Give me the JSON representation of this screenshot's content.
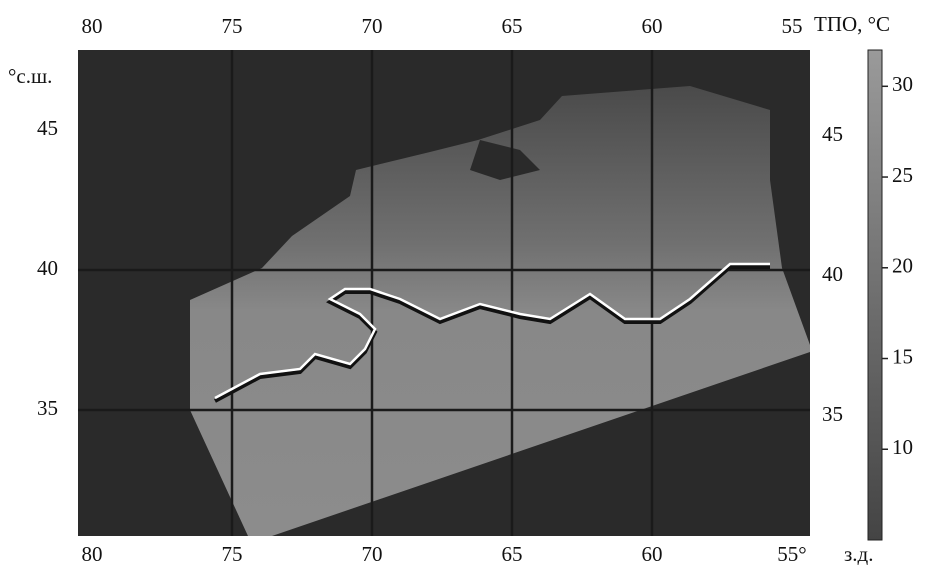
{
  "map": {
    "lon_ticks_top": [
      80,
      75,
      70,
      65,
      60,
      55
    ],
    "lon_ticks_bottom": [
      80,
      75,
      70,
      65,
      60,
      {
        "value": 55,
        "label": "55°"
      }
    ],
    "lon_unit": "з.д.",
    "lat_unit": "°с.ш.",
    "lat_ticks_left": [
      45,
      40,
      35
    ],
    "lat_ticks_right": [
      45,
      40,
      35
    ]
  },
  "colorbar": {
    "title": "ТПО, °C",
    "range": [
      5,
      32
    ],
    "ticks": [
      10,
      15,
      20,
      25,
      30
    ]
  }
}
